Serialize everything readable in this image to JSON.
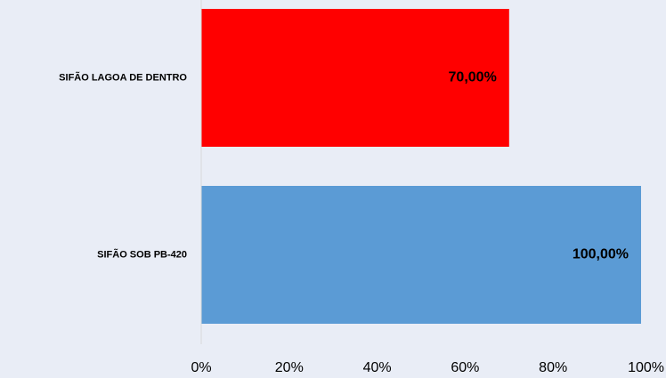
{
  "chart_data": {
    "type": "bar",
    "orientation": "horizontal",
    "categories": [
      "SIFÃO LAGOA DE DENTRO",
      "SIFÃO SOB PB-420"
    ],
    "values": [
      70,
      100
    ],
    "data_labels": [
      "70,00%",
      "100,00%"
    ],
    "bar_colors": [
      "#ff0000",
      "#5b9bd5"
    ],
    "xlim": [
      0,
      100
    ],
    "x_ticks": [
      0,
      20,
      40,
      60,
      80,
      100
    ],
    "x_tick_labels": [
      "0%",
      "20%",
      "40%",
      "60%",
      "80%",
      "100%"
    ],
    "title": "",
    "xlabel": "",
    "ylabel": "",
    "grid": false,
    "legend": "none",
    "background_color": "#e9edf6",
    "axis_color": "#d9d9d9"
  }
}
